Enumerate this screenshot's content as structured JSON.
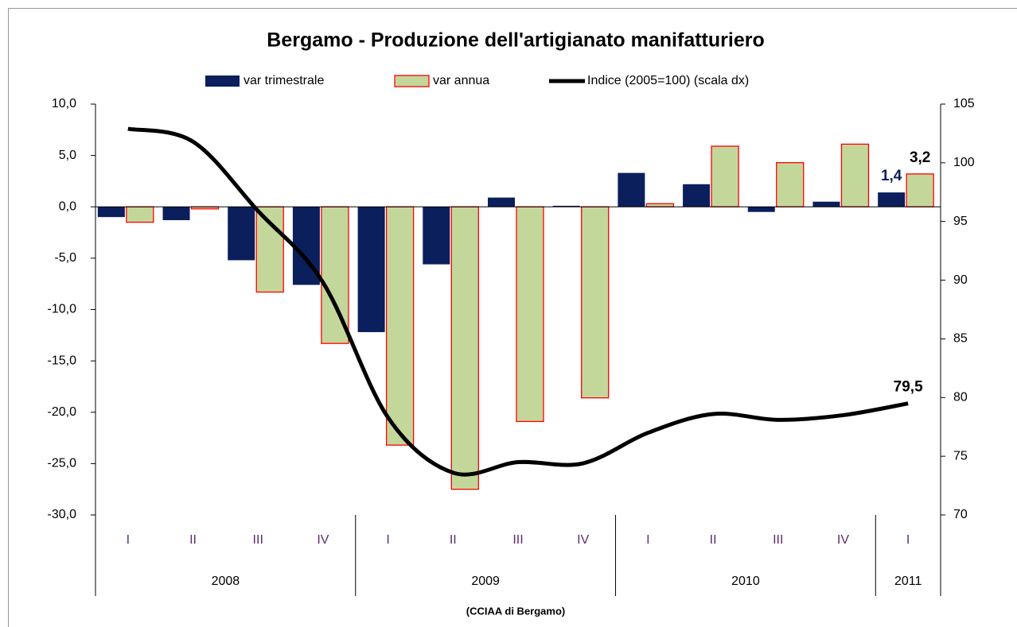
{
  "chart_data": {
    "type": "bar-line",
    "title": "Bergamo - Produzione dell'artigianato manifatturiero",
    "source": "(CCIAA di Bergamo)",
    "groups": [
      {
        "name": "2008",
        "categories": [
          "I",
          "II",
          "III",
          "IV"
        ]
      },
      {
        "name": "2009",
        "categories": [
          "I",
          "II",
          "III",
          "IV"
        ]
      },
      {
        "name": "2010",
        "categories": [
          "I",
          "II",
          "III",
          "IV"
        ]
      },
      {
        "name": "2011",
        "categories": [
          "I"
        ]
      }
    ],
    "series": [
      {
        "name": "var trimestrale",
        "type": "bar",
        "color": "#0b1f5c",
        "axis": "y",
        "values": [
          -1.0,
          -1.3,
          -5.2,
          -7.6,
          -12.2,
          -5.6,
          0.9,
          0.1,
          3.3,
          2.2,
          -0.5,
          0.5,
          1.4
        ],
        "value_labels": [
          null,
          null,
          null,
          null,
          null,
          null,
          null,
          null,
          null,
          null,
          null,
          null,
          "1,4"
        ]
      },
      {
        "name": "var annua",
        "type": "bar",
        "color": "#c4d79b",
        "edge_color": "#ff0000",
        "axis": "y",
        "values": [
          -1.5,
          -0.2,
          -8.3,
          -13.3,
          -23.2,
          -27.5,
          -20.9,
          -18.6,
          0.3,
          5.9,
          4.3,
          6.1,
          3.2
        ],
        "value_labels": [
          null,
          null,
          null,
          null,
          null,
          null,
          null,
          null,
          null,
          null,
          null,
          null,
          "3,2"
        ]
      },
      {
        "name": "Indice (2005=100)  (scala dx)",
        "type": "line",
        "color": "#000000",
        "axis": "y2",
        "values": [
          102.9,
          101.8,
          95.9,
          89.8,
          78.3,
          73.6,
          74.5,
          74.4,
          77.0,
          78.6,
          78.1,
          78.5,
          79.5
        ],
        "value_labels": [
          null,
          null,
          null,
          null,
          null,
          null,
          null,
          null,
          null,
          null,
          null,
          null,
          "79,5"
        ]
      }
    ],
    "ylim": [
      -30,
      10
    ],
    "yticks": [
      {
        "value": -30,
        "label": "-30,0"
      },
      {
        "value": -25,
        "label": "-25,0"
      },
      {
        "value": -20,
        "label": "-20,0"
      },
      {
        "value": -15,
        "label": "-15,0"
      },
      {
        "value": -10,
        "label": "-10,0"
      },
      {
        "value": -5,
        "label": "-5,0"
      },
      {
        "value": 0,
        "label": "0,0"
      },
      {
        "value": 5,
        "label": "5,0"
      },
      {
        "value": 10,
        "label": "10,0"
      }
    ],
    "y2lim": [
      70,
      105
    ],
    "y2ticks": [
      70,
      75,
      80,
      85,
      90,
      95,
      100,
      105
    ],
    "legend": "top",
    "grid": false
  }
}
